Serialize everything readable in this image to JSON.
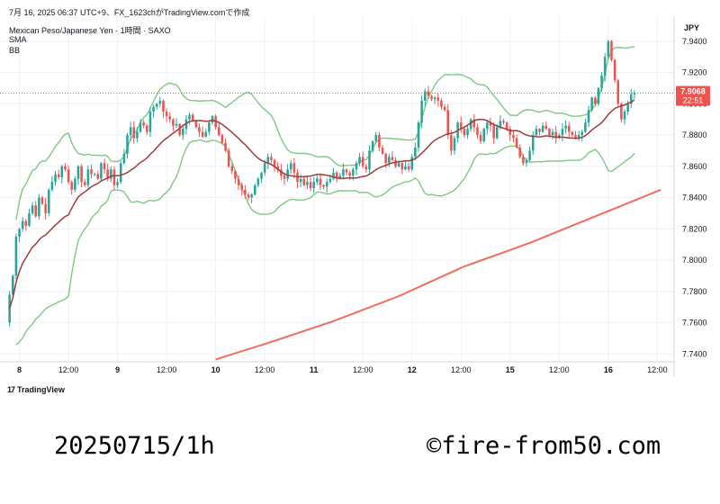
{
  "header": {
    "caption": "7月 16, 2025 06:37 UTC+9、FX_1623chがTradingView.comで作成",
    "symbol": "Mexican Peso/Japanese Yen · 1時間 · SAXO",
    "sma_label": "SMA",
    "bb_label": "BB"
  },
  "footer": {
    "logo_mark": "17",
    "logo_text": "TradingView",
    "caption_left": "20250715/1h",
    "caption_right": "©fire-from50.com"
  },
  "colors": {
    "up": "#26a69a",
    "down": "#ef5350",
    "sma_short": "#a03c3c",
    "sma_long": "#f26b5b",
    "bb": "#81c784",
    "grid": "#eef1f6",
    "price_tag": "#ef5350"
  },
  "chart_data": {
    "type": "candlestick",
    "currency": "JPY",
    "ylim": [
      7.735,
      7.956
    ],
    "xlim": [
      0,
      200
    ],
    "y_ticks": [
      "7.9400",
      "7.9200",
      "7.9000",
      "7.8800",
      "7.8600",
      "7.8400",
      "7.8200",
      "7.8000",
      "7.7800",
      "7.7600",
      "7.7400"
    ],
    "x_ticks": [
      {
        "label": "8",
        "x": 4,
        "bold": true
      },
      {
        "label": "12:00",
        "x": 19,
        "bold": false
      },
      {
        "label": "9",
        "x": 34,
        "bold": true
      },
      {
        "label": "12:00",
        "x": 49,
        "bold": false
      },
      {
        "label": "10",
        "x": 64,
        "bold": true
      },
      {
        "label": "12:00",
        "x": 79,
        "bold": false
      },
      {
        "label": "11",
        "x": 94,
        "bold": true
      },
      {
        "label": "12:00",
        "x": 109,
        "bold": false
      },
      {
        "label": "12",
        "x": 124,
        "bold": true
      },
      {
        "label": "12:00",
        "x": 139,
        "bold": false
      },
      {
        "label": "15",
        "x": 154,
        "bold": true
      },
      {
        "label": "12:00",
        "x": 169,
        "bold": false
      },
      {
        "label": "16",
        "x": 184,
        "bold": true
      },
      {
        "label": "12:00",
        "x": 199,
        "bold": false
      }
    ],
    "last_price": {
      "value": 7.9068,
      "label": "7.9068",
      "countdown": "22:51"
    },
    "closes": [
      7.76,
      7.778,
      7.79,
      7.815,
      7.82,
      7.825,
      7.822,
      7.83,
      7.835,
      7.828,
      7.84,
      7.836,
      7.83,
      7.845,
      7.85,
      7.855,
      7.853,
      7.86,
      7.858,
      7.85,
      7.845,
      7.852,
      7.86,
      7.85,
      7.848,
      7.858,
      7.855,
      7.855,
      7.852,
      7.862,
      7.858,
      7.852,
      7.858,
      7.848,
      7.85,
      7.862,
      7.868,
      7.88,
      7.885,
      7.878,
      7.882,
      7.888,
      7.886,
      7.882,
      7.895,
      7.898,
      7.9,
      7.902,
      7.895,
      7.892,
      7.89,
      7.886,
      7.887,
      7.88,
      7.884,
      7.89,
      7.893,
      7.889,
      7.885,
      7.882,
      7.879,
      7.882,
      7.888,
      7.892,
      7.885,
      7.88,
      7.875,
      7.87,
      7.86,
      7.857,
      7.852,
      7.848,
      7.845,
      7.842,
      7.84,
      7.842,
      7.848,
      7.852,
      7.856,
      7.862,
      7.866,
      7.864,
      7.86,
      7.858,
      7.854,
      7.852,
      7.858,
      7.862,
      7.856,
      7.85,
      7.852,
      7.848,
      7.85,
      7.846,
      7.85,
      7.852,
      7.848,
      7.847,
      7.85,
      7.852,
      7.856,
      7.852,
      7.854,
      7.858,
      7.856,
      7.854,
      7.858,
      7.862,
      7.866,
      7.86,
      7.858,
      7.87,
      7.876,
      7.88,
      7.872,
      7.868,
      7.862,
      7.866,
      7.864,
      7.86,
      7.862,
      7.858,
      7.86,
      7.858,
      7.866,
      7.872,
      7.888,
      7.902,
      7.908,
      7.905,
      7.903,
      7.904,
      7.902,
      7.898,
      7.896,
      7.88,
      7.87,
      7.878,
      7.888,
      7.884,
      7.88,
      7.884,
      7.89,
      7.885,
      7.88,
      7.876,
      7.884,
      7.888,
      7.886,
      7.878,
      7.885,
      7.889,
      7.888,
      7.884,
      7.88,
      7.878,
      7.872,
      7.866,
      7.862,
      7.864,
      7.87,
      7.88,
      7.884,
      7.882,
      7.886,
      7.884,
      7.88,
      7.882,
      7.878,
      7.88,
      7.884,
      7.886,
      7.882,
      7.88,
      7.878,
      7.88,
      7.882,
      7.888,
      7.896,
      7.904,
      7.9,
      7.91,
      7.918,
      7.93,
      7.94,
      7.928,
      7.915,
      7.9,
      7.89,
      7.895,
      7.9,
      7.906,
      7.907
    ],
    "sma_long": [
      {
        "x": 64,
        "y": 7.7365
      },
      {
        "x": 80,
        "y": 7.747
      },
      {
        "x": 100,
        "y": 7.761
      },
      {
        "x": 120,
        "y": 7.777
      },
      {
        "x": 140,
        "y": 7.796
      },
      {
        "x": 160,
        "y": 7.811
      },
      {
        "x": 180,
        "y": 7.828
      },
      {
        "x": 200,
        "y": 7.845
      }
    ]
  }
}
